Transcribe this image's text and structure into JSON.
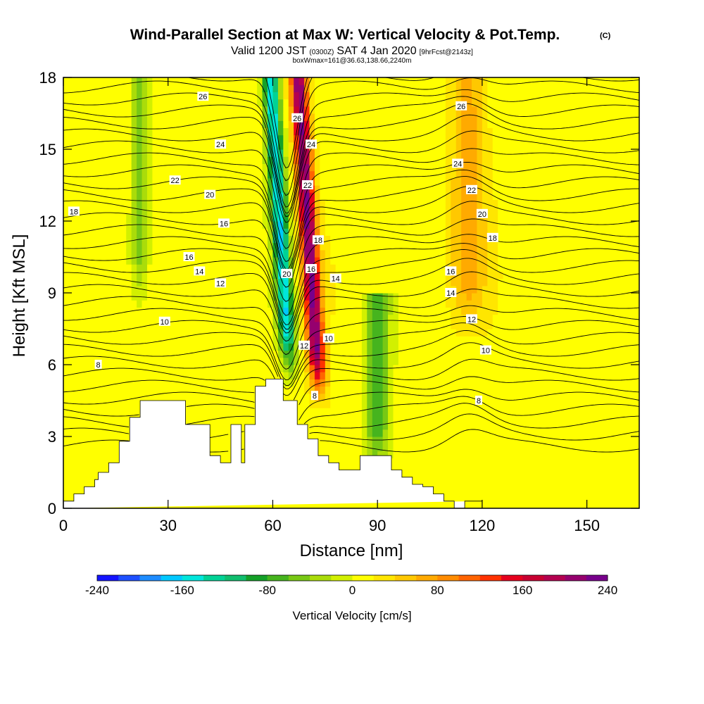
{
  "header": {
    "title": "Wind-Parallel Section at Max W: Vertical Velocity & Pot.Temp.",
    "title_units": "(C)",
    "subtitle_a": "Valid 1200 JST",
    "subtitle_b": "(0300Z)",
    "subtitle_c": "SAT 4 Jan 2020",
    "subtitle_d": "[9hrFcst@2143z]",
    "info": "boxWmax=161@36.63,138.66,2240m"
  },
  "colorbar": {
    "label": "Vertical Velocity [cm/s]",
    "tick_labels": [
      "-240",
      "-160",
      "-80",
      "0",
      "80",
      "160",
      "240"
    ],
    "colors": [
      "#1414ff",
      "#1e50ff",
      "#1e8cff",
      "#00c8ff",
      "#00e6dc",
      "#00d296",
      "#10be6e",
      "#14a028",
      "#46b41e",
      "#78c814",
      "#aadc0a",
      "#d2f000",
      "#ffff00",
      "#ffe600",
      "#ffc800",
      "#ffaa00",
      "#ff8c00",
      "#ff6400",
      "#ff3200",
      "#e6001e",
      "#c80032",
      "#b40050",
      "#96006e",
      "#78008c"
    ]
  },
  "chart_data": {
    "type": "heatmap",
    "title": "Wind-Parallel Section at Max W: Vertical Velocity & Pot.Temp.",
    "xlabel": "Distance [nm]",
    "ylabel": "Height [Kft MSL]",
    "xlim": [
      0,
      165
    ],
    "ylim": [
      0,
      18
    ],
    "x_ticks": [
      0,
      30,
      60,
      90,
      120,
      150
    ],
    "y_ticks": [
      0,
      3,
      6,
      9,
      12,
      15,
      18
    ],
    "color_range": [
      -240,
      240
    ],
    "grid": false,
    "terrain_profile": {
      "x": [
        0,
        3,
        3,
        6,
        6,
        9,
        9,
        10,
        10,
        13,
        13,
        16,
        16,
        19,
        19,
        22,
        22,
        25,
        25,
        35,
        35,
        42,
        42,
        45,
        45,
        48,
        48,
        51,
        51,
        52,
        52,
        55,
        55,
        58,
        58,
        63,
        63,
        67,
        67,
        70,
        70,
        73,
        73,
        76,
        76,
        79,
        79,
        85,
        85,
        94,
        94,
        97,
        97,
        100,
        100,
        103,
        103,
        106,
        106,
        109,
        109,
        112,
        112,
        115,
        115,
        120,
        120,
        165
      ],
      "y": [
        0.3,
        0.3,
        0.6,
        0.6,
        0.9,
        0.9,
        1.2,
        1.2,
        1.5,
        1.5,
        1.9,
        1.9,
        2.8,
        2.8,
        3.8,
        3.8,
        4.5,
        4.5,
        4.5,
        4.5,
        3.5,
        3.5,
        2.2,
        2.2,
        1.9,
        1.9,
        3.5,
        3.5,
        1.9,
        1.9,
        3.5,
        3.5,
        5.1,
        5.1,
        5.4,
        5.4,
        4.5,
        4.5,
        3.5,
        3.5,
        2.9,
        2.9,
        2.2,
        2.2,
        1.9,
        1.9,
        1.6,
        1.6,
        2.2,
        2.2,
        1.6,
        1.6,
        1.3,
        1.3,
        1.0,
        1.0,
        0.9,
        0.9,
        0.6,
        0.6,
        0.3,
        0.3,
        0.0,
        0.0,
        0.3,
        0.3
      ]
    },
    "velocity_features": [
      {
        "name": "strong updraft",
        "x_low": 68,
        "x_high": 72,
        "y_low": 5,
        "y_high": 18,
        "w": 210
      },
      {
        "name": "strong downdraft",
        "x_low": 60,
        "x_high": 64,
        "y_low": 6,
        "y_high": 18,
        "w": -170
      },
      {
        "name": "downdraft band",
        "x_low": 87,
        "x_high": 93,
        "y_low": 1.5,
        "y_high": 8,
        "w": -80
      },
      {
        "name": "upslope updraft",
        "x_low": 112,
        "x_high": 120,
        "y_low": 8,
        "y_high": 18,
        "w": 60
      },
      {
        "name": "left downdraft",
        "x_low": 20,
        "x_high": 24,
        "y_low": 9,
        "y_high": 18,
        "w": -60
      }
    ],
    "theta_contour_labels": [
      {
        "value": "26",
        "x": 40,
        "y": 17.2
      },
      {
        "value": "26",
        "x": 67,
        "y": 16.3
      },
      {
        "value": "26",
        "x": 114,
        "y": 16.8
      },
      {
        "value": "24",
        "x": 45,
        "y": 15.2
      },
      {
        "value": "24",
        "x": 71,
        "y": 15.2
      },
      {
        "value": "24",
        "x": 113,
        "y": 14.4
      },
      {
        "value": "22",
        "x": 32,
        "y": 13.7
      },
      {
        "value": "22",
        "x": 70,
        "y": 13.5
      },
      {
        "value": "22",
        "x": 117,
        "y": 13.3
      },
      {
        "value": "20",
        "x": 42,
        "y": 13.1
      },
      {
        "value": "20",
        "x": 64,
        "y": 9.8
      },
      {
        "value": "20",
        "x": 120,
        "y": 12.3
      },
      {
        "value": "18",
        "x": 3,
        "y": 12.4
      },
      {
        "value": "18",
        "x": 73,
        "y": 11.2
      },
      {
        "value": "18",
        "x": 123,
        "y": 11.3
      },
      {
        "value": "16",
        "x": 46,
        "y": 11.9
      },
      {
        "value": "16",
        "x": 71,
        "y": 10.0
      },
      {
        "value": "16",
        "x": 36,
        "y": 10.5
      },
      {
        "value": "16",
        "x": 111,
        "y": 9.9
      },
      {
        "value": "14",
        "x": 39,
        "y": 9.9
      },
      {
        "value": "14",
        "x": 78,
        "y": 9.6
      },
      {
        "value": "14",
        "x": 111,
        "y": 9.0
      },
      {
        "value": "12",
        "x": 45,
        "y": 9.4
      },
      {
        "value": "12",
        "x": 69,
        "y": 6.8
      },
      {
        "value": "12",
        "x": 117,
        "y": 7.9
      },
      {
        "value": "10",
        "x": 29,
        "y": 7.8
      },
      {
        "value": "10",
        "x": 76,
        "y": 7.1
      },
      {
        "value": "10",
        "x": 121,
        "y": 6.6
      },
      {
        "value": "8",
        "x": 10,
        "y": 6.0
      },
      {
        "value": "8",
        "x": 72,
        "y": 4.7
      },
      {
        "value": "8",
        "x": 119,
        "y": 4.5
      }
    ]
  }
}
